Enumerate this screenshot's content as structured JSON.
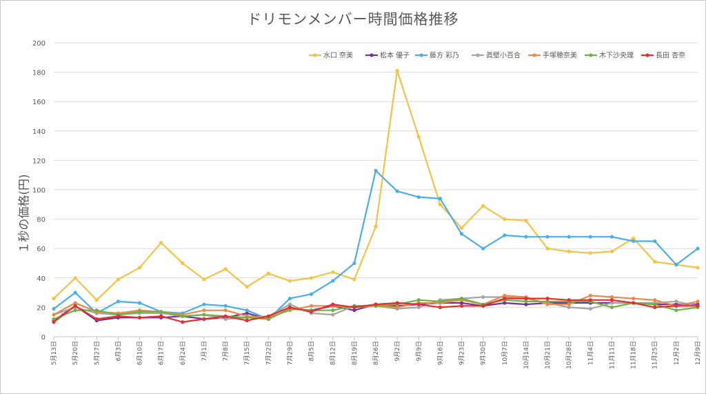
{
  "chart_data": {
    "type": "line",
    "title": "ドリモンメンバー時間価格推移",
    "ylabel": "１秒の価格(円)",
    "xlabel": "",
    "ylim": [
      0,
      200
    ],
    "yticks": [
      0,
      20,
      40,
      60,
      80,
      100,
      120,
      140,
      160,
      180,
      200
    ],
    "grid": true,
    "legend_position": "top-right",
    "categories": [
      "5月13日",
      "5月20日",
      "5月27日",
      "6月3日",
      "6月10日",
      "6月17日",
      "6月24日",
      "7月1日",
      "7月8日",
      "7月15日",
      "7月22日",
      "7月29日",
      "8月5日",
      "8月12日",
      "8月19日",
      "8月26日",
      "9月2日",
      "9月9日",
      "9月16日",
      "9月23日",
      "9月30日",
      "10月7日",
      "10月14日",
      "10月21日",
      "10月28日",
      "11月4日",
      "11月11日",
      "11月18日",
      "11月25日",
      "12月2日",
      "12月9日"
    ],
    "series": [
      {
        "name": "水口 奈美",
        "color": "#f5c242",
        "values": [
          26,
          40,
          25,
          39,
          47,
          64,
          50,
          39,
          46,
          34,
          43,
          38,
          40,
          44,
          39,
          75,
          181,
          136,
          90,
          74,
          89,
          80,
          79,
          60,
          58,
          57,
          58,
          67,
          51,
          49,
          47
        ]
      },
      {
        "name": "松本 優子",
        "color": "#7030a0",
        "values": [
          11,
          21,
          11,
          13,
          13,
          13,
          14,
          12,
          13,
          16,
          12,
          19,
          18,
          21,
          18,
          22,
          21,
          22,
          23,
          23,
          21,
          23,
          22,
          23,
          23,
          23,
          23,
          23,
          22,
          22,
          22
        ]
      },
      {
        "name": "藤方 彩乃",
        "color": "#4aaee6",
        "values": [
          19,
          30,
          16,
          24,
          23,
          17,
          16,
          22,
          21,
          18,
          12,
          26,
          29,
          38,
          50,
          113,
          99,
          95,
          94,
          70,
          60,
          69,
          68,
          68,
          68,
          68,
          68,
          65,
          65,
          49,
          60
        ]
      },
      {
        "name": "眞壁小百合",
        "color": "#a5a5a5",
        "values": [
          15,
          20,
          16,
          15,
          16,
          16,
          14,
          15,
          12,
          13,
          14,
          22,
          16,
          15,
          21,
          21,
          19,
          20,
          25,
          26,
          27,
          27,
          26,
          23,
          20,
          19,
          23,
          23,
          23,
          24,
          21
        ]
      },
      {
        "name": "手塚穂奈美",
        "color": "#e88b4a",
        "values": [
          15,
          23,
          17,
          16,
          18,
          17,
          15,
          18,
          18,
          14,
          13,
          18,
          21,
          21,
          20,
          21,
          20,
          23,
          23,
          25,
          22,
          28,
          27,
          22,
          22,
          28,
          27,
          26,
          25,
          21,
          24
        ]
      },
      {
        "name": "木下沙央理",
        "color": "#6db33f",
        "values": [
          12,
          18,
          18,
          15,
          17,
          17,
          14,
          15,
          14,
          13,
          12,
          19,
          18,
          18,
          21,
          21,
          22,
          25,
          24,
          26,
          22,
          25,
          24,
          24,
          24,
          24,
          20,
          23,
          22,
          18,
          20
        ]
      },
      {
        "name": "長田 杏奈",
        "color": "#e62e2e",
        "values": [
          10,
          21,
          12,
          14,
          13,
          14,
          10,
          12,
          14,
          11,
          14,
          20,
          17,
          22,
          20,
          22,
          23,
          22,
          20,
          21,
          21,
          26,
          26,
          26,
          25,
          25,
          25,
          23,
          20,
          21,
          21
        ]
      }
    ]
  }
}
